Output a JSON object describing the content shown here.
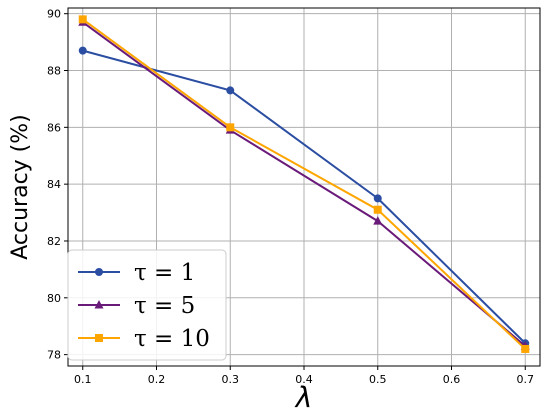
{
  "chart_data": {
    "type": "line",
    "xlabel": "λ",
    "ylabel": "Accuracy (%)",
    "xlim": [
      0.08,
      0.72
    ],
    "ylim": [
      77.6,
      90.2
    ],
    "x_ticks": [
      "0.1",
      "0.2",
      "0.3",
      "0.4",
      "0.5",
      "0.6",
      "0.7"
    ],
    "y_ticks": [
      "78",
      "80",
      "82",
      "84",
      "86",
      "88",
      "90"
    ],
    "grid": true,
    "legend_position": "lower-left",
    "x": [
      0.1,
      0.3,
      0.5,
      0.7
    ],
    "series": [
      {
        "name": "τ = 1",
        "values": [
          88.7,
          87.3,
          83.5,
          78.4
        ],
        "color": "#2b4ea2",
        "marker": "circle"
      },
      {
        "name": "τ = 5",
        "values": [
          89.7,
          85.9,
          82.7,
          78.3
        ],
        "color": "#6a1b7a",
        "marker": "triangle"
      },
      {
        "name": "τ = 10",
        "values": [
          89.8,
          86.0,
          83.1,
          78.2
        ],
        "color": "#ffa500",
        "marker": "square"
      }
    ]
  }
}
